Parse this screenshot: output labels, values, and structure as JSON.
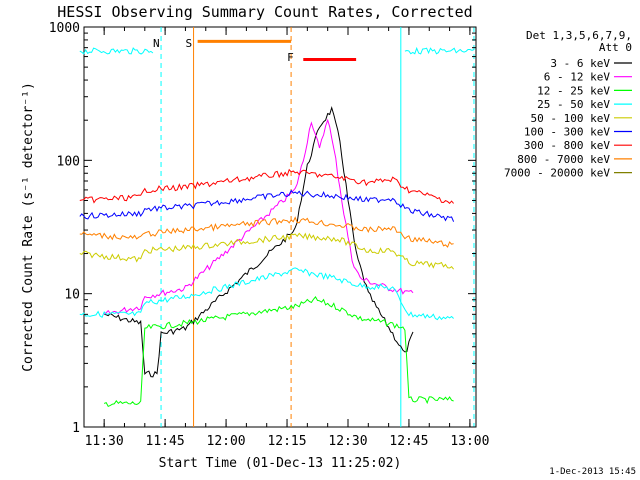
{
  "chart_data": {
    "type": "line",
    "title": "HESSI Observing Summary Count Rates, Corrected",
    "xlabel": "Start Time (01-Dec-13 11:25:02)",
    "ylabel": "Corrected Count Rate (s⁻¹ detector⁻¹)",
    "xticks": [
      "11:30",
      "11:45",
      "12:00",
      "12:15",
      "12:30",
      "12:45",
      "13:00"
    ],
    "yticks": [
      "1",
      "10",
      "100",
      "1000"
    ],
    "ylim": [
      1,
      1000
    ],
    "yscale": "log",
    "legend_header": [
      "Det 1,3,5,6,7,9,",
      "Att 0"
    ],
    "series": [
      {
        "name": "3 - 6 keV",
        "color": "#000000",
        "points": [
          [
            "11:30",
            7.0
          ],
          [
            "11:39",
            6.0
          ],
          [
            "11:40",
            2.5
          ],
          [
            "11:43",
            2.5
          ],
          [
            "11:44",
            5.0
          ],
          [
            "11:50",
            5.5
          ],
          [
            "12:17",
            30.0
          ],
          [
            "12:20",
            90.0
          ],
          [
            "12:23",
            180.0
          ],
          [
            "12:26",
            240.0
          ],
          [
            "12:28",
            140.0
          ],
          [
            "12:30",
            50.0
          ],
          [
            "12:32",
            20.0
          ],
          [
            "12:35",
            10.0
          ],
          [
            "12:38",
            7.0
          ],
          [
            "12:41",
            5.0
          ],
          [
            "12:44",
            3.5
          ],
          [
            "12:46",
            5.0
          ]
        ]
      },
      {
        "name": "6 - 12 keV",
        "color": "#ff00ff",
        "points": [
          [
            "11:30",
            7.0
          ],
          [
            "11:39",
            8.0
          ],
          [
            "11:40",
            9.5
          ],
          [
            "11:50",
            11.0
          ],
          [
            "12:17",
            60.0
          ],
          [
            "12:19",
            100.0
          ],
          [
            "12:21",
            200.0
          ],
          [
            "12:23",
            120.0
          ],
          [
            "12:25",
            210.0
          ],
          [
            "12:27",
            100.0
          ],
          [
            "12:29",
            40.0
          ],
          [
            "12:31",
            18.0
          ],
          [
            "12:33",
            13.0
          ],
          [
            "12:40",
            11.0
          ],
          [
            "12:46",
            10.0
          ]
        ]
      },
      {
        "name": "12 - 25 keV",
        "color": "#00ff00",
        "points": [
          [
            "11:30",
            1.5
          ],
          [
            "11:39",
            1.5
          ],
          [
            "11:40",
            5.5
          ],
          [
            "11:50",
            6.0
          ],
          [
            "12:17",
            8.0
          ],
          [
            "12:22",
            9.0
          ],
          [
            "12:27",
            8.0
          ],
          [
            "12:33",
            6.5
          ],
          [
            "12:40",
            6.0
          ],
          [
            "12:44",
            5.5
          ],
          [
            "12:45",
            1.6
          ],
          [
            "12:56",
            1.6
          ]
        ]
      },
      {
        "name": "25 - 50 keV",
        "color": "#00ffff",
        "points": [
          [
            "11:24",
            660
          ],
          [
            "11:42",
            660
          ],
          [
            "11:24",
            7.0
          ],
          [
            "11:39",
            7.0
          ],
          [
            "11:40",
            8.5
          ],
          [
            "11:50",
            9.5
          ],
          [
            "12:17",
            15.0
          ],
          [
            "12:22",
            14.0
          ],
          [
            "12:27",
            13.0
          ],
          [
            "12:33",
            11.5
          ],
          [
            "12:41",
            11.0
          ],
          [
            "12:45",
            7.0
          ],
          [
            "12:56",
            6.5
          ],
          [
            "12:44",
            660
          ],
          [
            "13:01",
            660
          ]
        ]
      },
      {
        "name": "50 - 100 keV",
        "color": "#cccc00",
        "points": [
          [
            "11:24",
            20.0
          ],
          [
            "11:39",
            18.0
          ],
          [
            "11:40",
            21.0
          ],
          [
            "11:50",
            22.0
          ],
          [
            "12:17",
            27.0
          ],
          [
            "12:27",
            26.0
          ],
          [
            "12:35",
            21.0
          ],
          [
            "12:41",
            21.0
          ],
          [
            "12:45",
            17.0
          ],
          [
            "12:56",
            16.0
          ]
        ]
      },
      {
        "name": "100 - 300 keV",
        "color": "#0000ff",
        "points": [
          [
            "11:24",
            38.0
          ],
          [
            "11:39",
            40.0
          ],
          [
            "11:40",
            43.0
          ],
          [
            "11:50",
            45.0
          ],
          [
            "12:17",
            57.0
          ],
          [
            "12:27",
            54.0
          ],
          [
            "12:35",
            50.0
          ],
          [
            "12:41",
            52.0
          ],
          [
            "12:45",
            42.0
          ],
          [
            "12:56",
            36.0
          ]
        ]
      },
      {
        "name": "300 - 800 keV",
        "color": "#ff0000",
        "points": [
          [
            "11:24",
            50.0
          ],
          [
            "11:39",
            53.0
          ],
          [
            "11:40",
            60.0
          ],
          [
            "11:50",
            63.0
          ],
          [
            "12:17",
            82.0
          ],
          [
            "12:27",
            75.0
          ],
          [
            "12:35",
            68.0
          ],
          [
            "12:41",
            72.0
          ],
          [
            "12:45",
            60.0
          ],
          [
            "12:56",
            48.0
          ]
        ]
      },
      {
        "name": "800 - 7000 keV",
        "color": "#ff8000",
        "points": [
          [
            "11:24",
            28.0
          ],
          [
            "11:39",
            26.0
          ],
          [
            "11:40",
            28.0
          ],
          [
            "11:50",
            30.0
          ],
          [
            "12:17",
            36.0
          ],
          [
            "12:27",
            33.0
          ],
          [
            "12:35",
            30.0
          ],
          [
            "12:41",
            31.0
          ],
          [
            "12:45",
            26.0
          ],
          [
            "12:56",
            23.0
          ]
        ]
      },
      {
        "name": "7000 - 20000 keV",
        "color": "#808000",
        "points": []
      }
    ],
    "annotations": [
      {
        "label": "N",
        "time": "11:44",
        "color": "#00ffff"
      },
      {
        "label": "S",
        "time": "11:52",
        "color": "#ff8000"
      },
      {
        "label": "F",
        "time": "12:17",
        "color": "#ff0000"
      }
    ],
    "overlay_bars": [
      {
        "name": "saa",
        "from": "11:53",
        "to": "12:16",
        "value": 780,
        "color": "#ff8000"
      },
      {
        "name": "flare",
        "from": "12:19",
        "to": "12:32",
        "value": 570,
        "color": "#ff0000"
      }
    ],
    "vertical_markers": [
      {
        "time": "11:44",
        "color": "#00ffff",
        "style": "dashed"
      },
      {
        "time": "11:52",
        "color": "#ff8000",
        "style": "solid"
      },
      {
        "time": "12:16",
        "color": "#ff8000",
        "style": "dashed"
      },
      {
        "time": "12:43",
        "color": "#00ffff",
        "style": "solid"
      },
      {
        "time": "13:01",
        "color": "#00ffff",
        "style": "dashed"
      }
    ]
  },
  "footer": {
    "date_stamp": "1-Dec-2013 15:45"
  }
}
